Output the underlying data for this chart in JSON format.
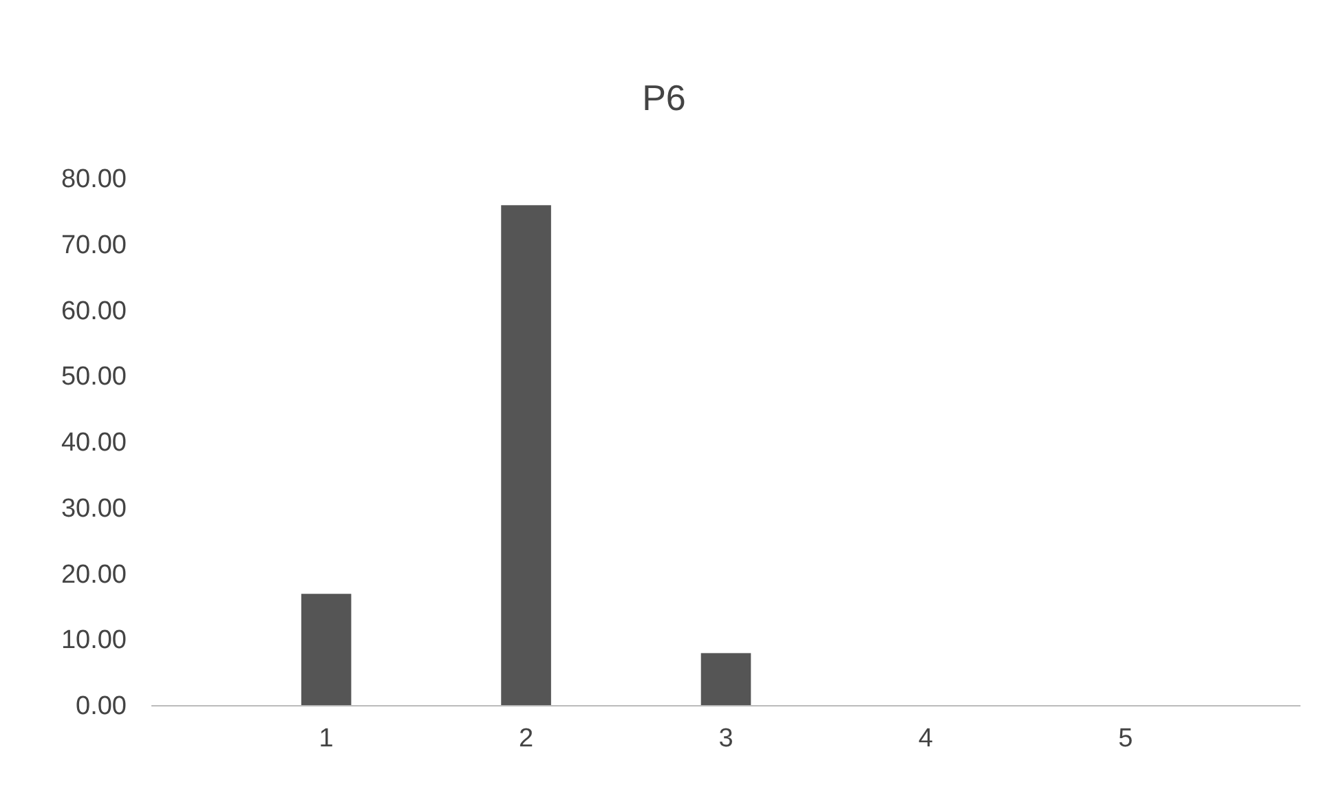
{
  "chart_data": {
    "type": "bar",
    "title": "P6",
    "categories": [
      "1",
      "2",
      "3",
      "4",
      "5"
    ],
    "values": [
      17,
      76,
      8,
      0,
      0
    ],
    "color": "#555555",
    "ylim": [
      0,
      80
    ],
    "yticks": [
      {
        "value": 0,
        "label": "0.00"
      },
      {
        "value": 10,
        "label": "10.00"
      },
      {
        "value": 20,
        "label": "20.00"
      },
      {
        "value": 30,
        "label": "30.00"
      },
      {
        "value": 40,
        "label": "40.00"
      },
      {
        "value": 50,
        "label": "50.00"
      },
      {
        "value": 60,
        "label": "60.00"
      },
      {
        "value": 70,
        "label": "70.00"
      },
      {
        "value": 80,
        "label": "80.00"
      }
    ],
    "grid": false
  }
}
